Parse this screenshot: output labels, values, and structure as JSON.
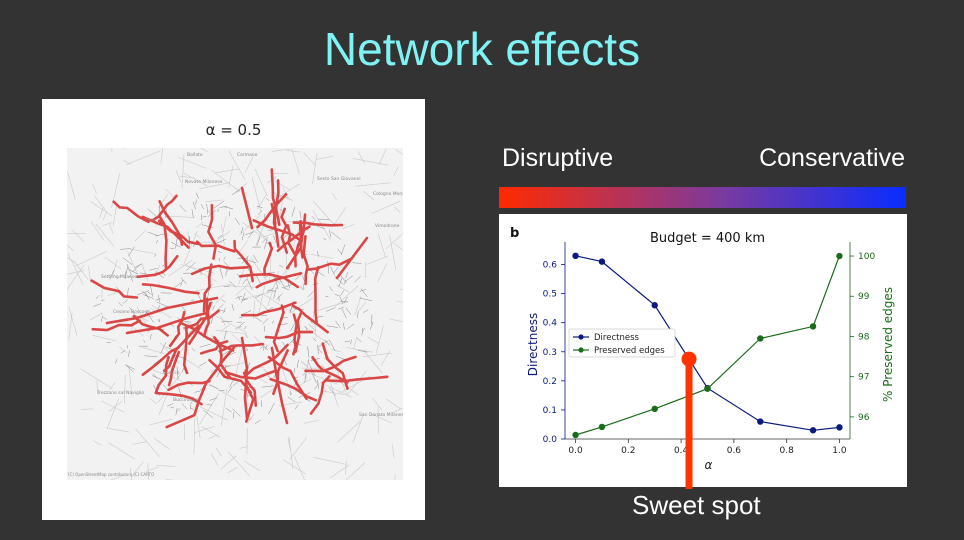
{
  "slide": {
    "title": "Network effects",
    "scale_left": "Disruptive",
    "scale_right": "Conservative",
    "gradient_colors": [
      "#ff2a00",
      "#7a3aa0",
      "#0a2cff"
    ],
    "sweet_spot_label": "Sweet spot",
    "sweet_spot_color": "#ff3300"
  },
  "map": {
    "title": "α = 0.5",
    "credit": "(C) OpenStreetMap contributors (C) CARTO",
    "places": [
      "Bollate",
      "Cormano",
      "Novate Milanese",
      "Sesto San Giovanni",
      "Cologno Monzese",
      "Pero",
      "Vimodrone",
      "Settimo Milanese",
      "Cesano Boscone",
      "Corsico",
      "Trezzano sul Naviglio",
      "Buccinasco",
      "San Donato Milanese"
    ]
  },
  "chart_data": {
    "type": "line",
    "panel_label": "b",
    "title": "Budget = 400 km",
    "xlabel": "α",
    "ylabel": "Directness",
    "y2label": "% Preserved edges",
    "x": [
      0.0,
      0.1,
      0.3,
      0.5,
      0.7,
      0.9,
      1.0
    ],
    "xlim": [
      -0.04,
      1.04
    ],
    "ylim": [
      0.0,
      0.65
    ],
    "y2lim": [
      95.45,
      100.15
    ],
    "xticks": [
      "0.0",
      "0.2",
      "0.4",
      "0.6",
      "0.8",
      "1.0"
    ],
    "yticks": [
      "0.0",
      "0.1",
      "0.2",
      "0.3",
      "0.4",
      "0.5",
      "0.6"
    ],
    "y2ticks": [
      "96",
      "97",
      "98",
      "99",
      "100"
    ],
    "series": [
      {
        "name": "Directness",
        "axis": "left",
        "color": "#0b1a80",
        "values": [
          0.63,
          0.61,
          0.46,
          0.175,
          0.06,
          0.03,
          0.04
        ]
      },
      {
        "name": "Preserved edges",
        "axis": "right",
        "color": "#1a6b1a",
        "values": [
          95.55,
          95.75,
          96.2,
          96.7,
          97.95,
          98.25,
          100.0
        ]
      }
    ],
    "sweet_spot_x": 0.43,
    "grid": false,
    "legend": "center-left"
  }
}
